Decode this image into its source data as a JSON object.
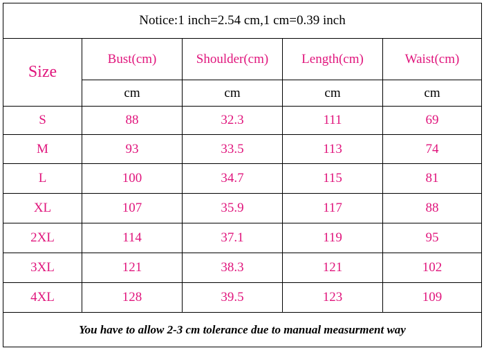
{
  "notice": "Notice:1 inch=2.54 cm,1 cm=0.39 inch",
  "header": {
    "size": "Size",
    "columns": [
      "Bust(cm)",
      "Shoulder(cm)",
      "Length(cm)",
      "Waist(cm)"
    ],
    "units": [
      "cm",
      "cm",
      "cm",
      "cm"
    ]
  },
  "rows": [
    {
      "size": "S",
      "values": [
        88,
        32.3,
        111,
        69
      ]
    },
    {
      "size": "M",
      "values": [
        93,
        33.5,
        113,
        74
      ]
    },
    {
      "size": "L",
      "values": [
        100,
        34.7,
        115,
        81
      ]
    },
    {
      "size": "XL",
      "values": [
        107,
        35.9,
        117,
        88
      ]
    },
    {
      "size": "2XL",
      "values": [
        114,
        37.1,
        119,
        95
      ]
    },
    {
      "size": "3XL",
      "values": [
        121,
        38.3,
        121,
        102
      ]
    },
    {
      "size": "4XL",
      "values": [
        128,
        39.5,
        123,
        109
      ]
    }
  ],
  "footer": "You have to allow 2-3 cm tolerance due to manual measurment way"
}
